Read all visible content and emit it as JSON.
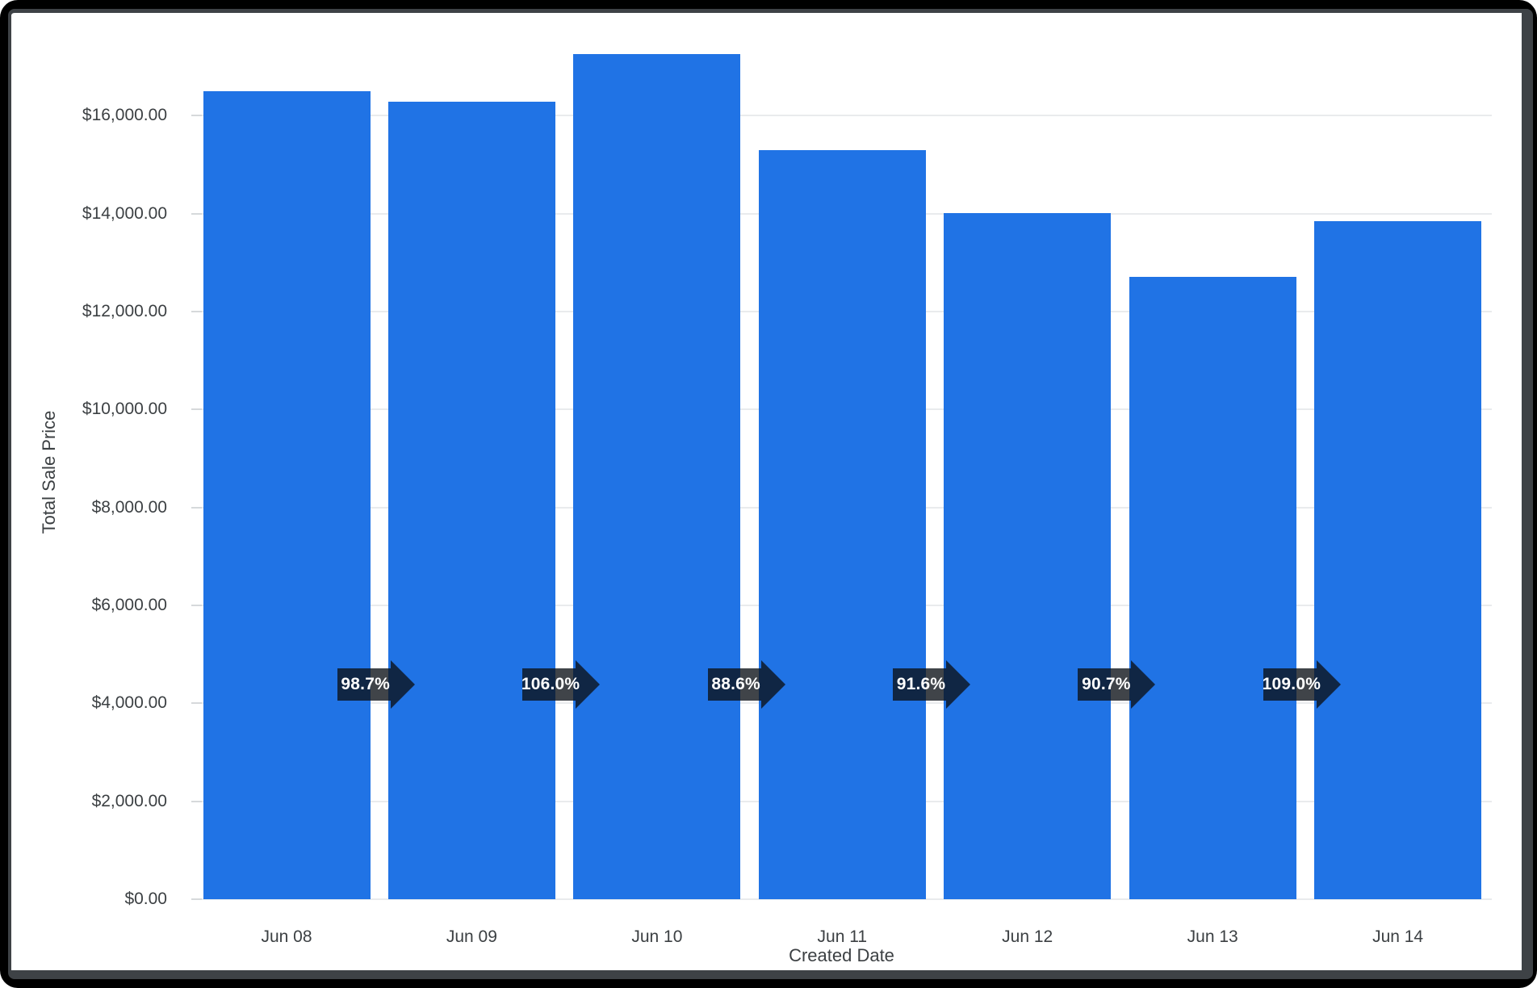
{
  "window": {
    "frame_color": "#000000",
    "rim_color": "#3e4246",
    "card_background": "#ffffff"
  },
  "chart_data": {
    "type": "bar",
    "title": "",
    "xlabel": "Created Date",
    "ylabel": "Total Sale Price",
    "categories": [
      "Jun 08",
      "Jun 09",
      "Jun 10",
      "Jun 11",
      "Jun 12",
      "Jun 13",
      "Jun 14"
    ],
    "series": [
      {
        "name": "Total Sale Price",
        "values": [
          16500,
          16285,
          17262,
          15294,
          14010,
          12707,
          13851
        ]
      }
    ],
    "values": [
      16500,
      16285,
      17262,
      15294,
      14010,
      12707,
      13851
    ],
    "ylim": [
      0,
      17600
    ],
    "y_ticks": [
      {
        "value": 0,
        "label": "$0.00"
      },
      {
        "value": 2000,
        "label": "$2,000.00"
      },
      {
        "value": 4000,
        "label": "$4,000.00"
      },
      {
        "value": 6000,
        "label": "$6,000.00"
      },
      {
        "value": 8000,
        "label": "$8,000.00"
      },
      {
        "value": 10000,
        "label": "$10,000.00"
      },
      {
        "value": 12000,
        "label": "$12,000.00"
      },
      {
        "value": 14000,
        "label": "$14,000.00"
      },
      {
        "value": 16000,
        "label": "$16,000.00"
      }
    ],
    "grid": true,
    "legend_position": "none",
    "bar_color": "#2073e5",
    "axis_text_color": "#3c4043",
    "gridline_color": "#e9ebed",
    "comparison_arrows": [
      {
        "between": [
          "Jun 08",
          "Jun 09"
        ],
        "label": "98.7%"
      },
      {
        "between": [
          "Jun 09",
          "Jun 10"
        ],
        "label": "106.0%"
      },
      {
        "between": [
          "Jun 10",
          "Jun 11"
        ],
        "label": "88.6%"
      },
      {
        "between": [
          "Jun 11",
          "Jun 12"
        ],
        "label": "91.6%"
      },
      {
        "between": [
          "Jun 12",
          "Jun 13"
        ],
        "label": "90.7%"
      },
      {
        "between": [
          "Jun 13",
          "Jun 14"
        ],
        "label": "109.0%"
      }
    ],
    "arrow_fill": "rgba(13,18,24,0.79)",
    "arrow_text_color": "#ffffff"
  }
}
